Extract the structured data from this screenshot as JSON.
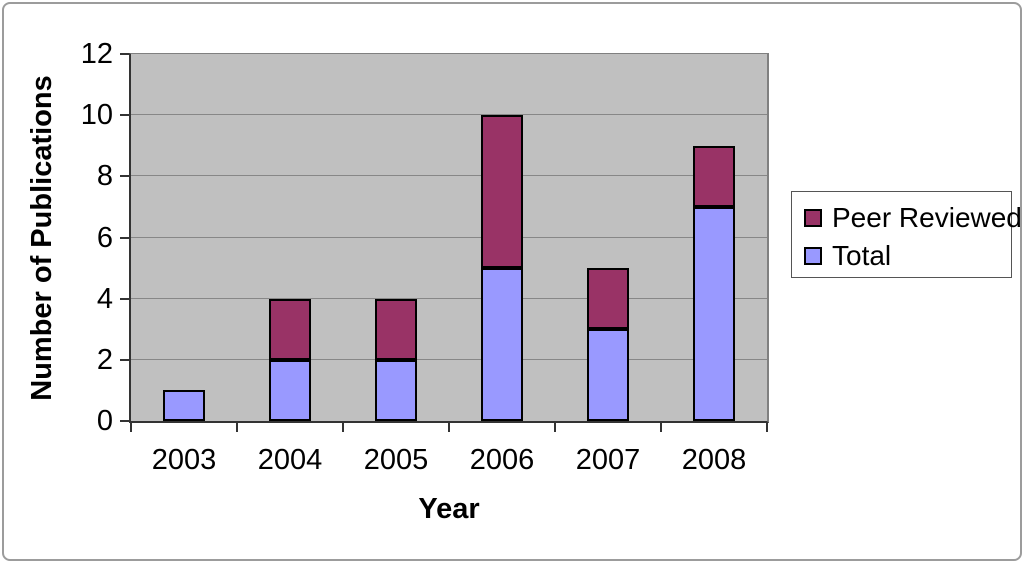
{
  "chart_data": {
    "type": "bar",
    "stacked": true,
    "title": "",
    "xlabel": "Year",
    "ylabel": "Number of Publications",
    "categories": [
      "2003",
      "2004",
      "2005",
      "2006",
      "2007",
      "2008"
    ],
    "series": [
      {
        "name": "Total",
        "color": "#9999FF",
        "values": [
          1,
          2,
          2,
          5,
          3,
          7
        ]
      },
      {
        "name": "Peer Reviewed",
        "color": "#993366",
        "values": [
          0,
          2,
          2,
          5,
          2,
          2
        ]
      }
    ],
    "stack_totals": [
      1,
      4,
      4,
      10,
      5,
      9
    ],
    "ylim": [
      0,
      12
    ],
    "yticks": [
      0,
      2,
      4,
      6,
      8,
      10,
      12
    ],
    "grid": "horizontal",
    "legend_position": "right",
    "legend_order": [
      "Peer Reviewed",
      "Total"
    ],
    "plot_background": "#C0C0C0",
    "gridline_color": "#878787",
    "bar_border_color": "#000000"
  }
}
